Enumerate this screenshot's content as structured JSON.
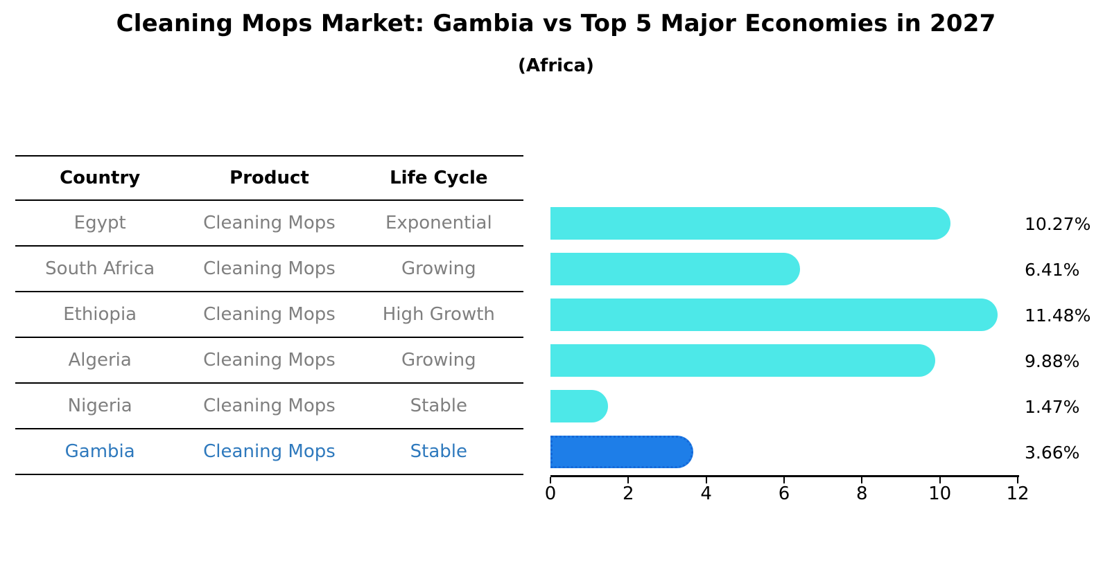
{
  "title": "Cleaning Mops Market: Gambia vs Top 5 Major Economies in 2027",
  "subtitle": "(Africa)",
  "table": {
    "headers": [
      "Country",
      "Product",
      "Life Cycle"
    ],
    "rows": [
      {
        "country": "Egypt",
        "product": "Cleaning Mops",
        "life_cycle": "Exponential",
        "highlight": false
      },
      {
        "country": "South Africa",
        "product": "Cleaning Mops",
        "life_cycle": "Growing",
        "highlight": false
      },
      {
        "country": "Ethiopia",
        "product": "Cleaning Mops",
        "life_cycle": "High Growth",
        "highlight": false
      },
      {
        "country": "Algeria",
        "product": "Cleaning Mops",
        "life_cycle": "Growing",
        "highlight": false
      },
      {
        "country": "Nigeria",
        "product": "Cleaning Mops",
        "life_cycle": "Stable",
        "highlight": false
      },
      {
        "country": "Gambia",
        "product": "Cleaning Mops",
        "life_cycle": "Stable",
        "highlight": true
      }
    ]
  },
  "chart_data": {
    "type": "bar",
    "orientation": "horizontal",
    "title": "Cleaning Mops Market: Gambia vs Top 5 Major Economies in 2027",
    "subtitle": "(Africa)",
    "categories": [
      "Egypt",
      "South Africa",
      "Ethiopia",
      "Algeria",
      "Nigeria",
      "Gambia"
    ],
    "values": [
      10.27,
      6.41,
      11.48,
      9.88,
      1.47,
      3.66
    ],
    "value_labels": [
      "10.27%",
      "6.41%",
      "11.48%",
      "9.88%",
      "1.47%",
      "3.66%"
    ],
    "xlim": [
      0,
      12
    ],
    "x_ticks": [
      0,
      2,
      4,
      6,
      8,
      10,
      12
    ],
    "x_tick_labels": [
      "0",
      "2",
      "4",
      "6",
      "8",
      "10",
      "12"
    ],
    "grid": false,
    "legend": "none",
    "highlight_index": 5,
    "bar_color": "#4de8e8",
    "highlight_color": "#1e7ee8",
    "highlight_border_color": "#1468d8",
    "highlight_text_color": "#2e79bd",
    "table_text_color": "#7f7f7f"
  }
}
